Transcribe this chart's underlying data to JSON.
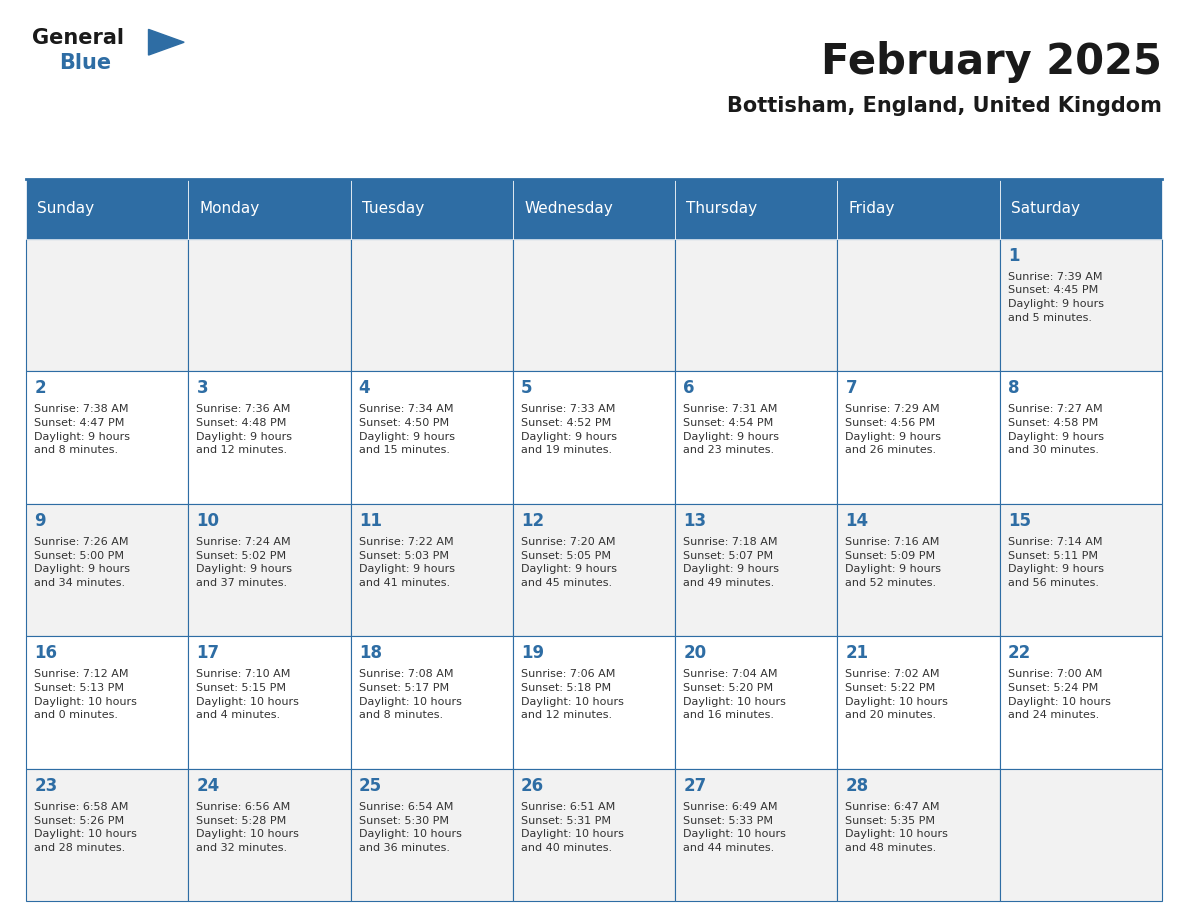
{
  "title": "February 2025",
  "subtitle": "Bottisham, England, United Kingdom",
  "header_bg": "#2E6DA4",
  "header_text_color": "#FFFFFF",
  "cell_bg_even": "#F2F2F2",
  "cell_bg_odd": "#FFFFFF",
  "border_color": "#2E6DA4",
  "title_color": "#1a1a1a",
  "day_number_color": "#2E6DA4",
  "text_color": "#333333",
  "days_of_week": [
    "Sunday",
    "Monday",
    "Tuesday",
    "Wednesday",
    "Thursday",
    "Friday",
    "Saturday"
  ],
  "weeks": [
    [
      {
        "day": null,
        "info": null
      },
      {
        "day": null,
        "info": null
      },
      {
        "day": null,
        "info": null
      },
      {
        "day": null,
        "info": null
      },
      {
        "day": null,
        "info": null
      },
      {
        "day": null,
        "info": null
      },
      {
        "day": 1,
        "info": "Sunrise: 7:39 AM\nSunset: 4:45 PM\nDaylight: 9 hours\nand 5 minutes."
      }
    ],
    [
      {
        "day": 2,
        "info": "Sunrise: 7:38 AM\nSunset: 4:47 PM\nDaylight: 9 hours\nand 8 minutes."
      },
      {
        "day": 3,
        "info": "Sunrise: 7:36 AM\nSunset: 4:48 PM\nDaylight: 9 hours\nand 12 minutes."
      },
      {
        "day": 4,
        "info": "Sunrise: 7:34 AM\nSunset: 4:50 PM\nDaylight: 9 hours\nand 15 minutes."
      },
      {
        "day": 5,
        "info": "Sunrise: 7:33 AM\nSunset: 4:52 PM\nDaylight: 9 hours\nand 19 minutes."
      },
      {
        "day": 6,
        "info": "Sunrise: 7:31 AM\nSunset: 4:54 PM\nDaylight: 9 hours\nand 23 minutes."
      },
      {
        "day": 7,
        "info": "Sunrise: 7:29 AM\nSunset: 4:56 PM\nDaylight: 9 hours\nand 26 minutes."
      },
      {
        "day": 8,
        "info": "Sunrise: 7:27 AM\nSunset: 4:58 PM\nDaylight: 9 hours\nand 30 minutes."
      }
    ],
    [
      {
        "day": 9,
        "info": "Sunrise: 7:26 AM\nSunset: 5:00 PM\nDaylight: 9 hours\nand 34 minutes."
      },
      {
        "day": 10,
        "info": "Sunrise: 7:24 AM\nSunset: 5:02 PM\nDaylight: 9 hours\nand 37 minutes."
      },
      {
        "day": 11,
        "info": "Sunrise: 7:22 AM\nSunset: 5:03 PM\nDaylight: 9 hours\nand 41 minutes."
      },
      {
        "day": 12,
        "info": "Sunrise: 7:20 AM\nSunset: 5:05 PM\nDaylight: 9 hours\nand 45 minutes."
      },
      {
        "day": 13,
        "info": "Sunrise: 7:18 AM\nSunset: 5:07 PM\nDaylight: 9 hours\nand 49 minutes."
      },
      {
        "day": 14,
        "info": "Sunrise: 7:16 AM\nSunset: 5:09 PM\nDaylight: 9 hours\nand 52 minutes."
      },
      {
        "day": 15,
        "info": "Sunrise: 7:14 AM\nSunset: 5:11 PM\nDaylight: 9 hours\nand 56 minutes."
      }
    ],
    [
      {
        "day": 16,
        "info": "Sunrise: 7:12 AM\nSunset: 5:13 PM\nDaylight: 10 hours\nand 0 minutes."
      },
      {
        "day": 17,
        "info": "Sunrise: 7:10 AM\nSunset: 5:15 PM\nDaylight: 10 hours\nand 4 minutes."
      },
      {
        "day": 18,
        "info": "Sunrise: 7:08 AM\nSunset: 5:17 PM\nDaylight: 10 hours\nand 8 minutes."
      },
      {
        "day": 19,
        "info": "Sunrise: 7:06 AM\nSunset: 5:18 PM\nDaylight: 10 hours\nand 12 minutes."
      },
      {
        "day": 20,
        "info": "Sunrise: 7:04 AM\nSunset: 5:20 PM\nDaylight: 10 hours\nand 16 minutes."
      },
      {
        "day": 21,
        "info": "Sunrise: 7:02 AM\nSunset: 5:22 PM\nDaylight: 10 hours\nand 20 minutes."
      },
      {
        "day": 22,
        "info": "Sunrise: 7:00 AM\nSunset: 5:24 PM\nDaylight: 10 hours\nand 24 minutes."
      }
    ],
    [
      {
        "day": 23,
        "info": "Sunrise: 6:58 AM\nSunset: 5:26 PM\nDaylight: 10 hours\nand 28 minutes."
      },
      {
        "day": 24,
        "info": "Sunrise: 6:56 AM\nSunset: 5:28 PM\nDaylight: 10 hours\nand 32 minutes."
      },
      {
        "day": 25,
        "info": "Sunrise: 6:54 AM\nSunset: 5:30 PM\nDaylight: 10 hours\nand 36 minutes."
      },
      {
        "day": 26,
        "info": "Sunrise: 6:51 AM\nSunset: 5:31 PM\nDaylight: 10 hours\nand 40 minutes."
      },
      {
        "day": 27,
        "info": "Sunrise: 6:49 AM\nSunset: 5:33 PM\nDaylight: 10 hours\nand 44 minutes."
      },
      {
        "day": 28,
        "info": "Sunrise: 6:47 AM\nSunset: 5:35 PM\nDaylight: 10 hours\nand 48 minutes."
      },
      {
        "day": null,
        "info": null
      }
    ]
  ],
  "logo_general_color": "#1a1a1a",
  "logo_blue_color": "#2E6DA4",
  "figsize": [
    11.88,
    9.18
  ],
  "dpi": 100
}
